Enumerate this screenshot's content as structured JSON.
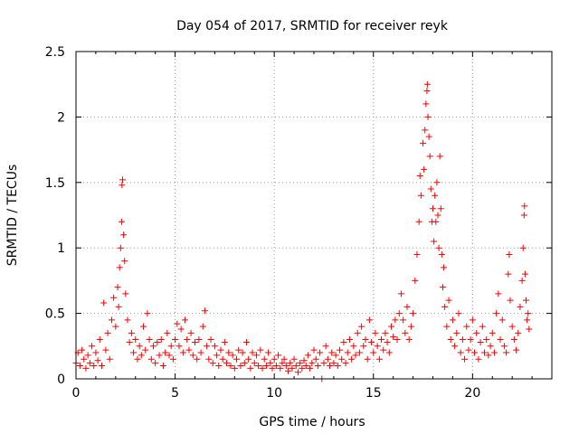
{
  "chart_data": {
    "type": "scatter",
    "title": "Day 054 of 2017, SRMTID for receiver reyk",
    "xlabel": "GPS time / hours",
    "ylabel": "SRMTID / TECUs",
    "xlim": [
      0,
      24
    ],
    "ylim": [
      0,
      2.5
    ],
    "xticks": [
      0,
      5,
      10,
      15,
      20
    ],
    "xtick_labels": [
      "0",
      "5",
      "10",
      "15",
      "20"
    ],
    "yticks": [
      0,
      0.5,
      1,
      1.5,
      2,
      2.5
    ],
    "ytick_labels": [
      "0",
      "0.5",
      "1",
      "1.5",
      "2",
      "2.5"
    ],
    "grid": true,
    "marker": "+",
    "color": "#ff0000",
    "series": [
      {
        "name": "SRMTID",
        "points": [
          [
            0.0,
            0.12
          ],
          [
            0.1,
            0.2
          ],
          [
            0.2,
            0.1
          ],
          [
            0.3,
            0.22
          ],
          [
            0.4,
            0.15
          ],
          [
            0.5,
            0.08
          ],
          [
            0.6,
            0.18
          ],
          [
            0.7,
            0.12
          ],
          [
            0.8,
            0.25
          ],
          [
            0.9,
            0.1
          ],
          [
            1.0,
            0.2
          ],
          [
            1.1,
            0.14
          ],
          [
            1.2,
            0.3
          ],
          [
            1.3,
            0.1
          ],
          [
            1.4,
            0.58
          ],
          [
            1.5,
            0.22
          ],
          [
            1.6,
            0.35
          ],
          [
            1.7,
            0.15
          ],
          [
            1.8,
            0.45
          ],
          [
            1.9,
            0.62
          ],
          [
            2.0,
            0.4
          ],
          [
            2.1,
            0.7
          ],
          [
            2.15,
            0.55
          ],
          [
            2.2,
            0.85
          ],
          [
            2.25,
            1.0
          ],
          [
            2.3,
            1.2
          ],
          [
            2.32,
            1.48
          ],
          [
            2.35,
            1.52
          ],
          [
            2.4,
            1.1
          ],
          [
            2.45,
            0.9
          ],
          [
            2.5,
            0.65
          ],
          [
            2.6,
            0.45
          ],
          [
            2.7,
            0.28
          ],
          [
            2.8,
            0.35
          ],
          [
            2.9,
            0.2
          ],
          [
            3.0,
            0.3
          ],
          [
            3.1,
            0.15
          ],
          [
            3.2,
            0.25
          ],
          [
            3.3,
            0.18
          ],
          [
            3.4,
            0.4
          ],
          [
            3.5,
            0.22
          ],
          [
            3.6,
            0.5
          ],
          [
            3.7,
            0.3
          ],
          [
            3.8,
            0.15
          ],
          [
            3.9,
            0.25
          ],
          [
            4.0,
            0.12
          ],
          [
            4.1,
            0.28
          ],
          [
            4.2,
            0.18
          ],
          [
            4.3,
            0.3
          ],
          [
            4.4,
            0.1
          ],
          [
            4.5,
            0.2
          ],
          [
            4.6,
            0.35
          ],
          [
            4.7,
            0.18
          ],
          [
            4.8,
            0.25
          ],
          [
            4.9,
            0.15
          ],
          [
            5.0,
            0.3
          ],
          [
            5.1,
            0.42
          ],
          [
            5.2,
            0.25
          ],
          [
            5.3,
            0.38
          ],
          [
            5.4,
            0.2
          ],
          [
            5.5,
            0.45
          ],
          [
            5.6,
            0.3
          ],
          [
            5.7,
            0.22
          ],
          [
            5.8,
            0.35
          ],
          [
            5.9,
            0.18
          ],
          [
            6.0,
            0.28
          ],
          [
            6.1,
            0.15
          ],
          [
            6.2,
            0.3
          ],
          [
            6.3,
            0.2
          ],
          [
            6.4,
            0.4
          ],
          [
            6.5,
            0.52
          ],
          [
            6.6,
            0.25
          ],
          [
            6.7,
            0.15
          ],
          [
            6.8,
            0.3
          ],
          [
            6.9,
            0.12
          ],
          [
            7.0,
            0.25
          ],
          [
            7.1,
            0.18
          ],
          [
            7.2,
            0.1
          ],
          [
            7.3,
            0.22
          ],
          [
            7.4,
            0.15
          ],
          [
            7.5,
            0.28
          ],
          [
            7.6,
            0.12
          ],
          [
            7.7,
            0.2
          ],
          [
            7.8,
            0.1
          ],
          [
            7.9,
            0.18
          ],
          [
            8.0,
            0.08
          ],
          [
            8.1,
            0.15
          ],
          [
            8.2,
            0.22
          ],
          [
            8.3,
            0.1
          ],
          [
            8.4,
            0.2
          ],
          [
            8.5,
            0.12
          ],
          [
            8.6,
            0.28
          ],
          [
            8.7,
            0.15
          ],
          [
            8.8,
            0.08
          ],
          [
            8.9,
            0.2
          ],
          [
            9.0,
            0.12
          ],
          [
            9.1,
            0.18
          ],
          [
            9.2,
            0.1
          ],
          [
            9.3,
            0.22
          ],
          [
            9.4,
            0.08
          ],
          [
            9.5,
            0.15
          ],
          [
            9.6,
            0.1
          ],
          [
            9.7,
            0.2
          ],
          [
            9.8,
            0.12
          ],
          [
            9.9,
            0.08
          ],
          [
            10.0,
            0.15
          ],
          [
            10.1,
            0.1
          ],
          [
            10.2,
            0.18
          ],
          [
            10.3,
            0.08
          ],
          [
            10.4,
            0.12
          ],
          [
            10.5,
            0.15
          ],
          [
            10.6,
            0.1
          ],
          [
            10.7,
            0.06
          ],
          [
            10.8,
            0.12
          ],
          [
            10.9,
            0.08
          ],
          [
            11.0,
            0.15
          ],
          [
            11.1,
            0.1
          ],
          [
            11.2,
            0.05
          ],
          [
            11.3,
            0.12
          ],
          [
            11.4,
            0.08
          ],
          [
            11.5,
            0.14
          ],
          [
            11.6,
            0.1
          ],
          [
            11.7,
            0.18
          ],
          [
            11.8,
            0.08
          ],
          [
            11.9,
            0.12
          ],
          [
            12.0,
            0.22
          ],
          [
            12.1,
            0.15
          ],
          [
            12.2,
            0.1
          ],
          [
            12.3,
            0.2
          ],
          [
            12.4,
            0.0
          ],
          [
            12.5,
            0.12
          ],
          [
            12.6,
            0.25
          ],
          [
            12.7,
            0.15
          ],
          [
            12.8,
            0.1
          ],
          [
            12.9,
            0.2
          ],
          [
            13.0,
            0.12
          ],
          [
            13.1,
            0.18
          ],
          [
            13.2,
            0.1
          ],
          [
            13.3,
            0.22
          ],
          [
            13.4,
            0.15
          ],
          [
            13.5,
            0.28
          ],
          [
            13.6,
            0.12
          ],
          [
            13.7,
            0.2
          ],
          [
            13.8,
            0.3
          ],
          [
            13.9,
            0.15
          ],
          [
            14.0,
            0.25
          ],
          [
            14.1,
            0.18
          ],
          [
            14.2,
            0.35
          ],
          [
            14.3,
            0.2
          ],
          [
            14.4,
            0.4
          ],
          [
            14.5,
            0.25
          ],
          [
            14.6,
            0.3
          ],
          [
            14.7,
            0.15
          ],
          [
            14.8,
            0.45
          ],
          [
            14.9,
            0.28
          ],
          [
            15.0,
            0.2
          ],
          [
            15.1,
            0.35
          ],
          [
            15.2,
            0.25
          ],
          [
            15.3,
            0.15
          ],
          [
            15.4,
            0.3
          ],
          [
            15.5,
            0.22
          ],
          [
            15.6,
            0.35
          ],
          [
            15.7,
            0.28
          ],
          [
            15.8,
            0.2
          ],
          [
            15.9,
            0.4
          ],
          [
            16.0,
            0.32
          ],
          [
            16.1,
            0.45
          ],
          [
            16.2,
            0.3
          ],
          [
            16.3,
            0.5
          ],
          [
            16.4,
            0.65
          ],
          [
            16.5,
            0.45
          ],
          [
            16.6,
            0.35
          ],
          [
            16.7,
            0.55
          ],
          [
            16.8,
            0.3
          ],
          [
            16.9,
            0.4
          ],
          [
            17.0,
            0.5
          ],
          [
            17.1,
            0.75
          ],
          [
            17.2,
            0.95
          ],
          [
            17.3,
            1.2
          ],
          [
            17.35,
            1.55
          ],
          [
            17.4,
            1.4
          ],
          [
            17.5,
            1.8
          ],
          [
            17.55,
            1.6
          ],
          [
            17.6,
            1.9
          ],
          [
            17.65,
            2.1
          ],
          [
            17.7,
            2.2
          ],
          [
            17.72,
            2.25
          ],
          [
            17.75,
            2.0
          ],
          [
            17.8,
            1.85
          ],
          [
            17.85,
            1.7
          ],
          [
            17.9,
            1.45
          ],
          [
            17.95,
            1.2
          ],
          [
            18.0,
            1.3
          ],
          [
            18.05,
            1.05
          ],
          [
            18.1,
            1.4
          ],
          [
            18.15,
            1.2
          ],
          [
            18.2,
            1.5
          ],
          [
            18.25,
            1.25
          ],
          [
            18.3,
            1.0
          ],
          [
            18.35,
            1.7
          ],
          [
            18.4,
            1.3
          ],
          [
            18.45,
            0.95
          ],
          [
            18.5,
            0.7
          ],
          [
            18.55,
            0.85
          ],
          [
            18.6,
            0.55
          ],
          [
            18.7,
            0.4
          ],
          [
            18.8,
            0.6
          ],
          [
            18.9,
            0.3
          ],
          [
            19.0,
            0.45
          ],
          [
            19.1,
            0.25
          ],
          [
            19.2,
            0.35
          ],
          [
            19.3,
            0.5
          ],
          [
            19.4,
            0.2
          ],
          [
            19.5,
            0.3
          ],
          [
            19.6,
            0.15
          ],
          [
            19.7,
            0.4
          ],
          [
            19.8,
            0.22
          ],
          [
            19.9,
            0.3
          ],
          [
            20.0,
            0.45
          ],
          [
            20.1,
            0.2
          ],
          [
            20.2,
            0.35
          ],
          [
            20.3,
            0.15
          ],
          [
            20.4,
            0.28
          ],
          [
            20.5,
            0.4
          ],
          [
            20.6,
            0.2
          ],
          [
            20.7,
            0.3
          ],
          [
            20.8,
            0.18
          ],
          [
            20.9,
            0.25
          ],
          [
            21.0,
            0.35
          ],
          [
            21.1,
            0.2
          ],
          [
            21.2,
            0.5
          ],
          [
            21.3,
            0.65
          ],
          [
            21.4,
            0.3
          ],
          [
            21.5,
            0.45
          ],
          [
            21.6,
            0.25
          ],
          [
            21.7,
            0.2
          ],
          [
            21.8,
            0.8
          ],
          [
            21.85,
            0.95
          ],
          [
            21.9,
            0.6
          ],
          [
            22.0,
            0.4
          ],
          [
            22.1,
            0.3
          ],
          [
            22.2,
            0.22
          ],
          [
            22.3,
            0.35
          ],
          [
            22.4,
            0.55
          ],
          [
            22.5,
            0.75
          ],
          [
            22.55,
            1.0
          ],
          [
            22.6,
            1.25
          ],
          [
            22.62,
            1.32
          ],
          [
            22.65,
            0.8
          ],
          [
            22.7,
            0.6
          ],
          [
            22.75,
            0.45
          ],
          [
            22.8,
            0.5
          ],
          [
            22.85,
            0.38
          ]
        ]
      }
    ]
  }
}
